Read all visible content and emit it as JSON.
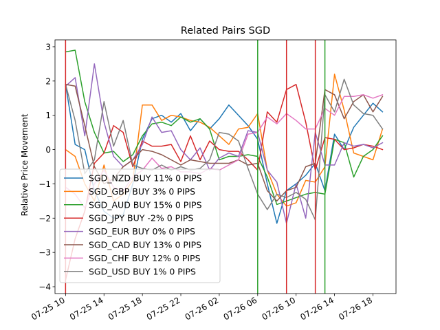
{
  "chart_data": {
    "type": "line",
    "title": "Related Pairs SGD",
    "xlabel": "",
    "ylabel": "Relative Price Movement",
    "ylim": [
      -4.2,
      3.2
    ],
    "yticks": [
      -4,
      -3,
      -2,
      -1,
      0,
      1,
      2,
      3
    ],
    "xlim": [
      -1.1,
      34.4
    ],
    "xticks": [
      {
        "x": 0,
        "label": "07-25 10"
      },
      {
        "x": 4,
        "label": "07-25 14"
      },
      {
        "x": 8,
        "label": "07-25 18"
      },
      {
        "x": 12,
        "label": "07-25 22"
      },
      {
        "x": 16,
        "label": "07-26 02"
      },
      {
        "x": 20,
        "label": "07-26 06"
      },
      {
        "x": 24,
        "label": "07-26 10"
      },
      {
        "x": 28,
        "label": "07-26 14"
      },
      {
        "x": 32,
        "label": "07-26 18"
      }
    ],
    "grid": false,
    "legend_position": "lower-left",
    "vlines": [
      {
        "x": 0,
        "color": "#d62728"
      },
      {
        "x": 20,
        "color": "#2ca02c"
      },
      {
        "x": 23,
        "color": "#d62728"
      },
      {
        "x": 26,
        "color": "#d62728"
      },
      {
        "x": 27,
        "color": "#2ca02c"
      }
    ],
    "series": [
      {
        "name": "SGD_NZD BUY 11% 0 PIPS",
        "color": "#1f77b4",
        "x": [
          0,
          1,
          2,
          3,
          4,
          5,
          6,
          7,
          8,
          9,
          10,
          11,
          12,
          13,
          14,
          15,
          16,
          17,
          18,
          19,
          20,
          21,
          22,
          23,
          24,
          25,
          26,
          27,
          28,
          29,
          30,
          31,
          32,
          33
        ],
        "values": [
          1.9,
          0.15,
          0.0,
          -1.2,
          -1.8,
          -2.0,
          -1.9,
          -1.0,
          0.3,
          0.9,
          1.0,
          0.8,
          1.05,
          0.55,
          0.9,
          0.6,
          0.9,
          1.3,
          1.0,
          0.7,
          0.3,
          -1.0,
          -2.15,
          -1.2,
          -1.0,
          -0.75,
          -0.4,
          -1.2,
          0.45,
          0.0,
          0.65,
          1.0,
          1.35,
          1.1
        ]
      },
      {
        "name": "SGD_GBP BUY 3% 0 PIPS",
        "color": "#ff7f0e",
        "x": [
          0,
          1,
          2,
          3,
          4,
          5,
          6,
          7,
          8,
          9,
          10,
          11,
          12,
          13,
          14,
          15,
          16,
          17,
          18,
          19,
          20,
          21,
          22,
          23,
          24,
          25,
          26,
          27,
          28,
          29,
          30,
          31,
          32,
          33
        ],
        "values": [
          0.0,
          -0.2,
          -1.0,
          -1.5,
          -0.45,
          -1.5,
          -1.3,
          -0.9,
          1.3,
          1.3,
          0.85,
          1.0,
          0.95,
          0.85,
          0.8,
          0.65,
          0.4,
          0.15,
          0.6,
          0.65,
          1.05,
          -0.6,
          -1.3,
          -1.65,
          -1.55,
          -0.9,
          -0.95,
          -0.5,
          2.2,
          1.15,
          -0.1,
          -0.2,
          -0.3,
          0.6
        ]
      },
      {
        "name": "SGD_AUD BUY 15% 0 PIPS",
        "color": "#2ca02c",
        "x": [
          0,
          1,
          2,
          3,
          4,
          5,
          6,
          7,
          8,
          9,
          10,
          11,
          12,
          13,
          14,
          15,
          16,
          17,
          18,
          19,
          20,
          21,
          22,
          23,
          24,
          25,
          26,
          27,
          28,
          29,
          30,
          31,
          32,
          33
        ],
        "values": [
          2.85,
          2.9,
          1.4,
          0.5,
          -0.1,
          -0.05,
          -0.35,
          -0.15,
          0.4,
          0.75,
          0.8,
          0.7,
          0.95,
          0.8,
          0.9,
          0.6,
          -0.3,
          -0.2,
          -0.2,
          -0.15,
          -0.2,
          -0.8,
          -1.6,
          -1.5,
          -1.4,
          -1.3,
          -1.25,
          -1.3,
          0.3,
          0.2,
          -0.8,
          -0.2,
          0.0,
          0.4
        ]
      },
      {
        "name": "SGD_JPY BUY -2% 0 PIPS",
        "color": "#d62728",
        "x": [
          0,
          1,
          2,
          3,
          4,
          5,
          6,
          7,
          8,
          9,
          10,
          11,
          12,
          13,
          14,
          15,
          16,
          17,
          18,
          19,
          20,
          21,
          22,
          23,
          24,
          25,
          26,
          27,
          28,
          29,
          30,
          31,
          32,
          33
        ],
        "values": [
          -3.8,
          -2.6,
          -1.8,
          -0.4,
          -0.1,
          0.7,
          0.5,
          -0.5,
          0.25,
          0.1,
          0.1,
          0.15,
          -0.35,
          0.4,
          -0.3,
          0.25,
          0.0,
          -0.05,
          -0.05,
          -0.3,
          -0.6,
          1.1,
          0.8,
          1.75,
          1.9,
          0.8,
          -0.6,
          0.35,
          0.3,
          0.0,
          0.05,
          0.15,
          0.1,
          0.0
        ]
      },
      {
        "name": "SGD_EUR BUY 0% 0 PIPS",
        "color": "#9467bd",
        "x": [
          0,
          1,
          2,
          3,
          4,
          5,
          6,
          7,
          8,
          9,
          10,
          11,
          12,
          13,
          14,
          15,
          16,
          17,
          18,
          19,
          20,
          21,
          22,
          23,
          24,
          25,
          26,
          27,
          28,
          29,
          30,
          31,
          32,
          33
        ],
        "values": [
          1.85,
          2.1,
          0.4,
          2.5,
          0.8,
          -0.2,
          -0.5,
          -0.3,
          0.15,
          0.95,
          0.5,
          0.55,
          0.0,
          -0.3,
          0.05,
          -0.6,
          -0.25,
          -0.1,
          -0.2,
          0.55,
          0.5,
          -0.6,
          -0.95,
          -2.15,
          -1.0,
          -2.0,
          0.5,
          -0.45,
          -0.45,
          0.2,
          0.1,
          0.15,
          0.05,
          0.2
        ]
      },
      {
        "name": "SGD_CAD BUY 13% 0 PIPS",
        "color": "#8c564b",
        "x": [
          0,
          1,
          2,
          3,
          4,
          5,
          6,
          7,
          8,
          9,
          10,
          11,
          12,
          13,
          14,
          15,
          16,
          17,
          18,
          19,
          20,
          21,
          22,
          23,
          24,
          25,
          26,
          27,
          28,
          29,
          30,
          31,
          32,
          33
        ],
        "values": [
          1.9,
          1.85,
          0.7,
          -0.5,
          -1.0,
          -0.85,
          -0.5,
          -0.3,
          0.0,
          -0.05,
          -0.15,
          -0.3,
          -0.45,
          -0.3,
          -0.35,
          -0.4,
          -0.4,
          -0.4,
          -0.3,
          -0.45,
          -0.4,
          -1.2,
          -1.5,
          -1.2,
          -1.1,
          -0.5,
          -0.4,
          1.75,
          1.6,
          0.9,
          1.4,
          1.6,
          1.1,
          1.55
        ]
      },
      {
        "name": "SGD_CHF BUY 12% 0 PIPS",
        "color": "#e377c2",
        "x": [
          0,
          1,
          2,
          3,
          4,
          5,
          6,
          7,
          8,
          9,
          10,
          11,
          12,
          13,
          14,
          15,
          16,
          17,
          18,
          19,
          20,
          21,
          22,
          23,
          24,
          25,
          26,
          27,
          28,
          29,
          30,
          31,
          32,
          33
        ],
        "values": [
          -1.1,
          -1.3,
          -1.7,
          -1.0,
          -0.6,
          -1.1,
          -1.2,
          -0.8,
          -0.6,
          -0.25,
          -0.55,
          -0.5,
          -0.65,
          -0.65,
          -0.7,
          -0.55,
          -0.6,
          -0.45,
          -0.3,
          0.45,
          0.5,
          0.95,
          0.75,
          1.05,
          0.85,
          0.6,
          0.6,
          1.2,
          1.0,
          1.55,
          1.55,
          1.6,
          1.5,
          1.6
        ]
      },
      {
        "name": "SGD_USD BUY 1% 0 PIPS",
        "color": "#7f7f7f",
        "x": [
          0,
          1,
          2,
          3,
          4,
          5,
          6,
          7,
          8,
          9,
          10,
          11,
          12,
          13,
          14,
          15,
          16,
          17,
          18,
          19,
          20,
          21,
          22,
          23,
          24,
          25,
          26,
          27,
          28,
          29,
          30,
          31,
          32,
          33
        ],
        "values": [
          1.9,
          0.85,
          -0.7,
          -0.3,
          1.4,
          0.1,
          0.85,
          -0.45,
          -0.55,
          -0.6,
          -0.45,
          -0.6,
          -0.5,
          -0.6,
          -0.55,
          -0.3,
          0.5,
          0.45,
          0.25,
          -0.55,
          -1.3,
          -1.75,
          -1.3,
          -1.4,
          -1.25,
          -1.45,
          -2.05,
          1.6,
          1.1,
          2.05,
          1.3,
          1.05,
          1.0,
          0.6
        ]
      }
    ]
  }
}
